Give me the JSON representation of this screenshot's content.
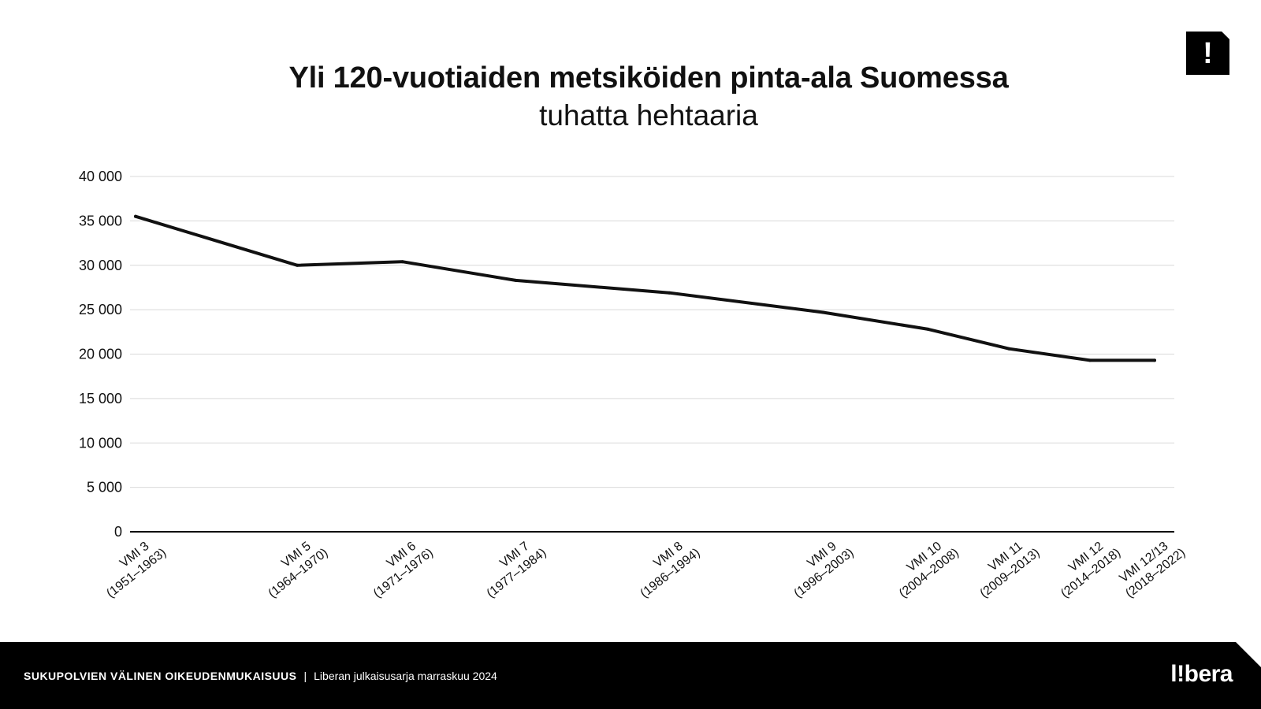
{
  "title": "Yli 120-vuotiaiden metsiköiden pinta-ala Suomessa",
  "subtitle": "tuhatta hehtaaria",
  "badge_icon": "exclamation-icon",
  "badge_glyph": "!",
  "footer": {
    "series": "SUKUPOLVIEN VÄLINEN OIKEUDENMUKAISUUS",
    "separator": "|",
    "publication": "Liberan julkaisusarja marraskuu 2024",
    "logo": "l!bera"
  },
  "chart_data": {
    "type": "line",
    "categories": [
      [
        "VMI 3",
        "(1951–1963)"
      ],
      [
        "VMI 5",
        "(1964–1970)"
      ],
      [
        "VMI 6",
        "(1971–1976)"
      ],
      [
        "VMI 7",
        "(1977–1984)"
      ],
      [
        "VMI 8",
        "(1986–1994)"
      ],
      [
        "VMI 9",
        "(1996–2003)"
      ],
      [
        "VMI 10",
        "(2004–2008)"
      ],
      [
        "VMI 11",
        "(2009–2013)"
      ],
      [
        "VMI 12",
        "(2014–2018)"
      ],
      [
        "VMI 12/13",
        "(2018–2022)"
      ]
    ],
    "x": [
      1957,
      1967,
      1973.5,
      1980.5,
      1990,
      1999.5,
      2006,
      2011,
      2016,
      2020
    ],
    "values": [
      35500,
      30000,
      30400,
      28300,
      26900,
      24700,
      22800,
      20600,
      19300,
      19300
    ],
    "ylim": [
      0,
      40000
    ],
    "yticks": [
      0,
      5000,
      10000,
      15000,
      20000,
      25000,
      30000,
      35000,
      40000
    ],
    "ytick_labels": [
      "0",
      "5 000",
      "10 000",
      "15 000",
      "20 000",
      "25 000",
      "30 000",
      "35 000",
      "40 000"
    ],
    "grid": true,
    "legend": "none",
    "line_color": "#111111",
    "grid_color": "#d9d9d9"
  }
}
